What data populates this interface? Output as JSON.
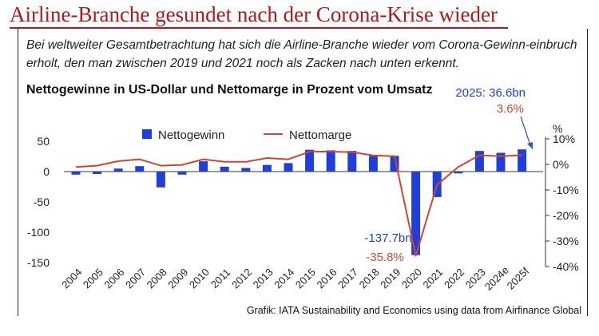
{
  "headline": "Airline-Branche gesundet nach der Corona-Krise wieder",
  "intro": "Bei weltweiter Gesamtbetrachtung hat sich die Airline-Branche wieder vom Corona-Gewinn-einbruch erholt, den man zwischen 2019 und 2021 noch als Zacken nach unten erkennt.",
  "source": "Grafik: IATA Sustainability and Economics using data from Airfinance Global",
  "chart_data": {
    "type": "bar",
    "title": "Nettogewinne in US-Dollar und Nettomarge in Prozent vom Umsatz",
    "categories": [
      "2004",
      "2005",
      "2006",
      "2007",
      "2008",
      "2009",
      "2010",
      "2011",
      "2012",
      "2013",
      "2014",
      "2015",
      "2016",
      "2017",
      "2018",
      "2019",
      "2020",
      "2021",
      "2022",
      "2023",
      "2024e",
      "2025f"
    ],
    "series": [
      {
        "name": "Nettogewinn",
        "type": "bar",
        "axis": "left",
        "color": "#1f3fd8",
        "values": [
          -5,
          -4,
          5,
          9,
          -26,
          -5,
          17,
          8,
          6,
          11,
          14,
          36,
          35,
          34,
          26,
          26,
          -137.7,
          -42,
          -3,
          34,
          31,
          36.6
        ]
      },
      {
        "name": "Nettomarge",
        "type": "line",
        "axis": "right",
        "color": "#d0452f",
        "values": [
          -1,
          -0.5,
          1.3,
          2,
          -0.5,
          -0.2,
          2,
          1,
          1,
          2.5,
          2,
          5,
          5,
          4.8,
          3.5,
          3.2,
          -35.8,
          -8,
          -1,
          3.6,
          3.2,
          3.6
        ]
      }
    ],
    "y_left": {
      "ylim": [
        -150,
        50
      ],
      "ticks": [
        "50",
        "0",
        "-50",
        "-100",
        "-150"
      ]
    },
    "y_right": {
      "label": "%",
      "ylim": [
        -40,
        10
      ],
      "ticks": [
        "10%",
        "0%",
        "-10%",
        "-20%",
        "-30%",
        "-40%"
      ]
    },
    "legend": {
      "placement": "top-center",
      "bar_label": "Nettogewinn",
      "line_label": "Nettomarge"
    },
    "annotations": [
      {
        "text": "-137.7bn",
        "color": "#1f3fd8"
      },
      {
        "text": "-35.8%",
        "color": "#d0452f"
      },
      {
        "text": "2025: 36.6bn",
        "color": "#1f3fd8"
      },
      {
        "text": "3.6%",
        "color": "#d0452f"
      }
    ],
    "grid": false
  }
}
